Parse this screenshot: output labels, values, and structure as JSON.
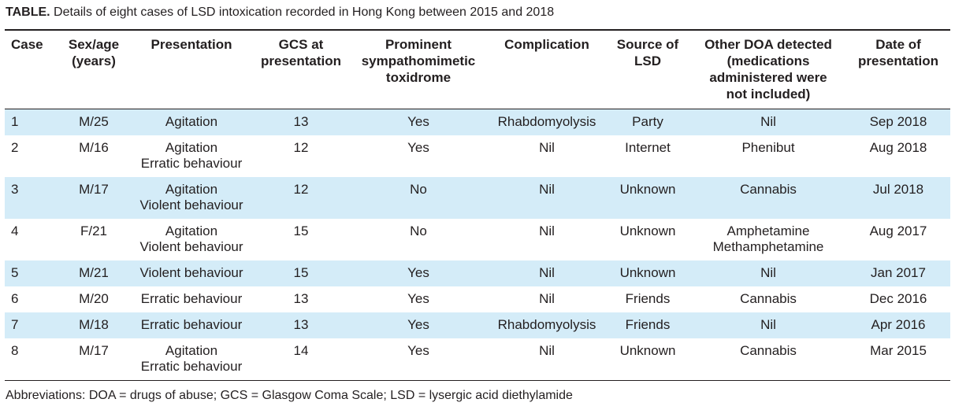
{
  "caption": {
    "label": "TABLE.",
    "text": " Details of eight cases of LSD intoxication recorded in Hong Kong between 2015 and 2018"
  },
  "table": {
    "headers": [
      [
        "Case"
      ],
      [
        "Sex/age",
        "(years)"
      ],
      [
        "Presentation"
      ],
      [
        "GCS at",
        "presentation"
      ],
      [
        "Prominent",
        "sympathomimetic",
        "toxidrome"
      ],
      [
        "Complication"
      ],
      [
        "Source of",
        "LSD"
      ],
      [
        "Other DOA detected",
        "(medications",
        "administered were",
        "not included)"
      ],
      [
        "Date of",
        "presentation"
      ]
    ],
    "rows": [
      [
        [
          "1"
        ],
        [
          "M/25"
        ],
        [
          "Agitation"
        ],
        [
          "13"
        ],
        [
          "Yes"
        ],
        [
          "Rhabdomyolysis"
        ],
        [
          "Party"
        ],
        [
          "Nil"
        ],
        [
          "Sep 2018"
        ]
      ],
      [
        [
          "2"
        ],
        [
          "M/16"
        ],
        [
          "Agitation",
          "Erratic behaviour"
        ],
        [
          "12"
        ],
        [
          "Yes"
        ],
        [
          "Nil"
        ],
        [
          "Internet"
        ],
        [
          "Phenibut"
        ],
        [
          "Aug 2018"
        ]
      ],
      [
        [
          "3"
        ],
        [
          "M/17"
        ],
        [
          "Agitation",
          "Violent behaviour"
        ],
        [
          "12"
        ],
        [
          "No"
        ],
        [
          "Nil"
        ],
        [
          "Unknown"
        ],
        [
          "Cannabis"
        ],
        [
          "Jul 2018"
        ]
      ],
      [
        [
          "4"
        ],
        [
          "F/21"
        ],
        [
          "Agitation",
          "Violent behaviour"
        ],
        [
          "15"
        ],
        [
          "No"
        ],
        [
          "Nil"
        ],
        [
          "Unknown"
        ],
        [
          "Amphetamine",
          "Methamphetamine"
        ],
        [
          "Aug 2017"
        ]
      ],
      [
        [
          "5"
        ],
        [
          "M/21"
        ],
        [
          "Violent behaviour"
        ],
        [
          "15"
        ],
        [
          "Yes"
        ],
        [
          "Nil"
        ],
        [
          "Unknown"
        ],
        [
          "Nil"
        ],
        [
          "Jan 2017"
        ]
      ],
      [
        [
          "6"
        ],
        [
          "M/20"
        ],
        [
          "Erratic behaviour"
        ],
        [
          "13"
        ],
        [
          "Yes"
        ],
        [
          "Nil"
        ],
        [
          "Friends"
        ],
        [
          "Cannabis"
        ],
        [
          "Dec 2016"
        ]
      ],
      [
        [
          "7"
        ],
        [
          "M/18"
        ],
        [
          "Erratic behaviour"
        ],
        [
          "13"
        ],
        [
          "Yes"
        ],
        [
          "Rhabdomyolysis"
        ],
        [
          "Friends"
        ],
        [
          "Nil"
        ],
        [
          "Apr 2016"
        ]
      ],
      [
        [
          "8"
        ],
        [
          "M/17"
        ],
        [
          "Agitation",
          "Erratic behaviour"
        ],
        [
          "14"
        ],
        [
          "Yes"
        ],
        [
          "Nil"
        ],
        [
          "Unknown"
        ],
        [
          "Cannabis"
        ],
        [
          "Mar 2015"
        ]
      ]
    ]
  },
  "footnote": "Abbreviations: DOA = drugs of abuse; GCS = Glasgow Coma Scale; LSD = lysergic acid diethylamide"
}
